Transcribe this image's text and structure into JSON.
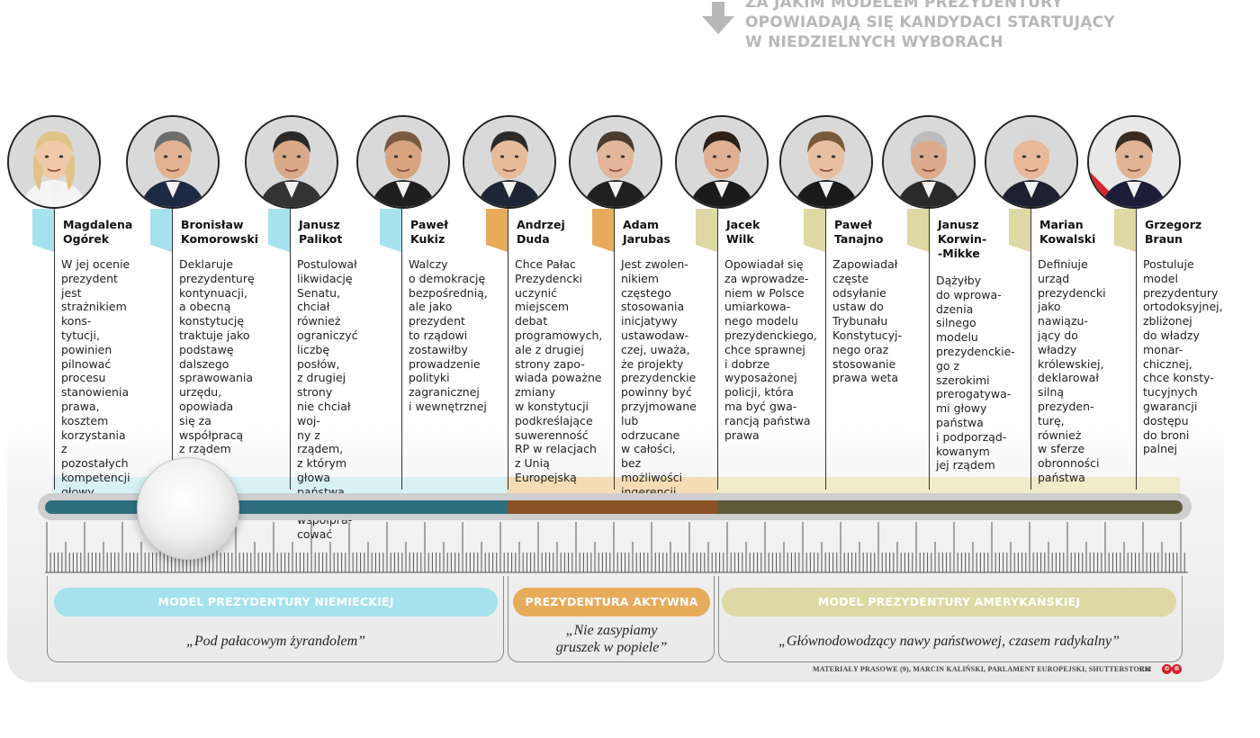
{
  "header": {
    "title_lines": [
      "ZA JAKIM MODELEM PREZYDENTURY",
      "OPOWIADAJĄ SIĘ KANDYDACI STARTUJĄCY",
      "W NIEDZIELNYCH WYBORACH"
    ],
    "icon": "arrow-down-icon"
  },
  "colors": {
    "german": "#a6e2ee",
    "active": "#e7ab5c",
    "american": "#ddd8a4",
    "track_german": "#2d6f7f",
    "track_active": "#8a5326",
    "track_american": "#5b5b3a"
  },
  "candidates": [
    {
      "name": "Magdalena\nOgórek",
      "desc": "W jej ocenie\nprezydent jest\nstrażnikiem kons-\ntytucji, powinien\npilnować procesu\nstanowienia\nprawa, kosztem\nkorzystania\nz pozostałych\nkompetencji\ngłowy państwa",
      "group": "german"
    },
    {
      "name": "Bronisław\nKomorowski",
      "desc": "Deklaruje\nprezydenturę\nkontynuacji,\na obecną\nkonstytucję\ntraktuje jako\npodstawę\ndalszego\nsprawowania\nurzędu, opowiada\nsię za współpracą\nz rządem",
      "group": "german"
    },
    {
      "name": "Janusz\nPalikot",
      "desc": "Postulował\nlikwidację\nSenatu,\nchciał również\nograniczyć\nliczbę posłów,\nz drugiej strony\nnie chciał woj-\nny z rządem,\nz którym głowa\npaństwa\nma współpra-\ncować",
      "group": "german"
    },
    {
      "name": "Paweł\nKukiz",
      "desc": "Walczy\no demokrację\nbezpośrednią,\nale jako\nprezydent\nto rządowi\nzostawiłby\nprowadzenie\npolityki\nzagranicznej\ni wewnętrznej",
      "group": "german"
    },
    {
      "name": "Andrzej\nDuda",
      "desc": "Chce Pałac\nPrezydencki\nuczynić\nmiejscem debat\nprogramowych,\nale z drugiej\nstrony zapo-\nwiada poważne\nzmiany\nw konstytucji\npodkreślające\nsuwerenność\nRP w relacjach\nz Unią\nEuropejską",
      "group": "active"
    },
    {
      "name": "Adam\nJarubas",
      "desc": "Jest zwolen-\nnikiem częstego\nstosowania\ninicjatywy\nustawodaw-\nczej, uważa,\nże projekty\nprezydenckie\npowinny być\nprzyjmowane\nlub odrzucane\nw całości, bez\nmożliwości\ningerencji\nw ich treść",
      "group": "active"
    },
    {
      "name": "Jacek\nWilk",
      "desc": "Opowiadał się\nza wprowadze-\nniem w Polsce\numiarkowa-\nnego modelu\nprezydenckiego,\nchce sprawnej\ni dobrze\nwyposażonej\npolicji, która\nma być gwa-\nrancją państwa\nprawa",
      "group": "american"
    },
    {
      "name": "Paweł\nTanajno",
      "desc": "Zapowiadał\nczęste\nodsyłanie\nustaw do\nTrybunału\nKonstytucyj-\nnego oraz\nstosowanie\nprawa weta",
      "group": "american"
    },
    {
      "name": "Janusz\nKorwin-\n-Mikke",
      "desc": "Dążyłby\ndo wprowa-\ndzenia silnego\nmodelu\nprezydenckie-\ngo z szerokimi\nprerogatywa-\nmi głowy\npaństwa\ni podporząd-\nkowanym\njej rządem",
      "group": "american"
    },
    {
      "name": "Marian\nKowalski",
      "desc": "Definiuje urząd\nprezydencki\njako nawiązu-\njący do władzy\nkrólewskiej,\ndeklarował\nsilną prezyden-\nturę, również\nw sferze\nobronności\npaństwa",
      "group": "american"
    },
    {
      "name": "Grzegorz\nBraun",
      "desc": "Postuluje\nmodel\nprezydentury\nortodoksyjnej,\nzbliżonej\ndo władzy\nmonar-\nchicznej,\nchce konsty-\ntucyjnych\ngwarancji\ndostępu\ndo broni\npalnej",
      "group": "american"
    }
  ],
  "categories": {
    "german": {
      "label": "MODEL PREZYDENTURY NIEMIECKIEJ",
      "quote": "„Pod pałacowym żyrandolem”"
    },
    "active": {
      "label": "PREZYDENTURA AKTYWNA",
      "quote": "„Nie zasypiamy\ngruszek w popiele”"
    },
    "american": {
      "label": "MODEL PREZYDENTURY AMERYKAŃSKIEJ",
      "quote": "„Głównodowodzący nawy państwowej, czasem radykalny”"
    }
  },
  "credit": "MATERIAŁY PRASOWE (9), MARCIN KALIŃSKI, PARLAMENT EUROPEJSKI, SHUTTERSTOCK",
  "credit_initials": "RM",
  "logo_marks": [
    "©",
    "®"
  ]
}
